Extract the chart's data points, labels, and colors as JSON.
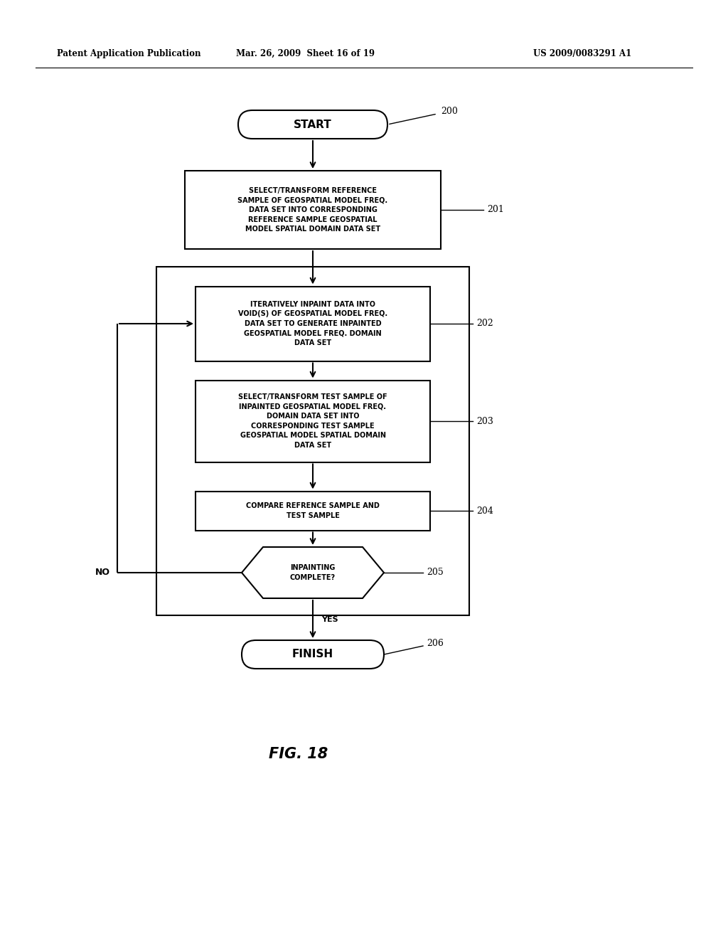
{
  "header_left": "Patent Application Publication",
  "header_mid": "Mar. 26, 2009  Sheet 16 of 19",
  "header_right": "US 2009/0083291 A1",
  "fig_label": "FIG. 18",
  "background_color": "#ffffff",
  "box201_text": "SELECT/TRANSFORM REFERENCE\nSAMPLE OF GEOSPATIAL MODEL FREQ.\nDATA SET INTO CORRESPONDING\nREFERENCE SAMPLE GEOSPATIAL\nMODEL SPATIAL DOMAIN DATA SET",
  "box202_text": "ITERATIVELY INPAINT DATA INTO\nVOID(S) OF GEOSPATIAL MODEL FREQ.\nDATA SET TO GENERATE INPAINTED\nGEOSPATIAL MODEL FREQ. DOMAIN\nDATA SET",
  "box203_text": "SELECT/TRANSFORM TEST SAMPLE OF\nINPAINTED GEOSPATIAL MODEL FREQ.\nDOMAIN DATA SET INTO\nCORRESPONDING TEST SAMPLE\nGEOSPATIAL MODEL SPATIAL DOMAIN\nDATA SET",
  "box204_text": "COMPARE REFRENCE SAMPLE AND\nTEST SAMPLE",
  "diamond205_text": "INPAINTING\nCOMPLETE?",
  "label200": "200",
  "label201": "201",
  "label202": "202",
  "label203": "203",
  "label204": "204",
  "label205": "205",
  "label206": "206",
  "no_label": "NO",
  "yes_label": "YES"
}
